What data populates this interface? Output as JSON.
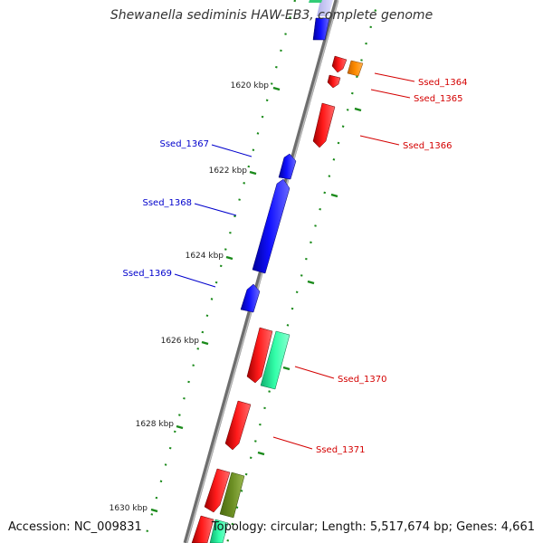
{
  "title": "Shewanella sediminis HAW-EB3, complete genome",
  "footer": {
    "accession": "Accession: NC_009831",
    "topology": "Topology: circular; Length: 5,517,674 bp; Genes: 4,661"
  },
  "ruler_labels": [
    "1620 kbp",
    "1622 kbp",
    "1624 kbp",
    "1626 kbp",
    "1628 kbp",
    "1630 kbp"
  ],
  "gene_labels": [
    {
      "id": "ssed-1364",
      "text": "Ssed_1364",
      "color": "#d40000"
    },
    {
      "id": "ssed-1365",
      "text": "Ssed_1365",
      "color": "#d40000"
    },
    {
      "id": "ssed-1366",
      "text": "Ssed_1366",
      "color": "#d40000"
    },
    {
      "id": "ssed-1367",
      "text": "Ssed_1367",
      "color": "#0000cc"
    },
    {
      "id": "ssed-1368",
      "text": "Ssed_1368",
      "color": "#0000cc"
    },
    {
      "id": "ssed-1369",
      "text": "Ssed_1369",
      "color": "#0000cc"
    },
    {
      "id": "ssed-1370",
      "text": "Ssed_1370",
      "color": "#d40000"
    },
    {
      "id": "ssed-1371",
      "text": "Ssed_1371",
      "color": "#d40000"
    }
  ],
  "colors": {
    "backbone": "#7f7f7f",
    "tick": "#1a8a1a",
    "forward_gene": "#0000ff",
    "reverse_gene": "#ff0000",
    "orange_feature": "#ff8c00",
    "teal_feature": "#33ffaa",
    "olive_feature": "#6b8e23"
  }
}
